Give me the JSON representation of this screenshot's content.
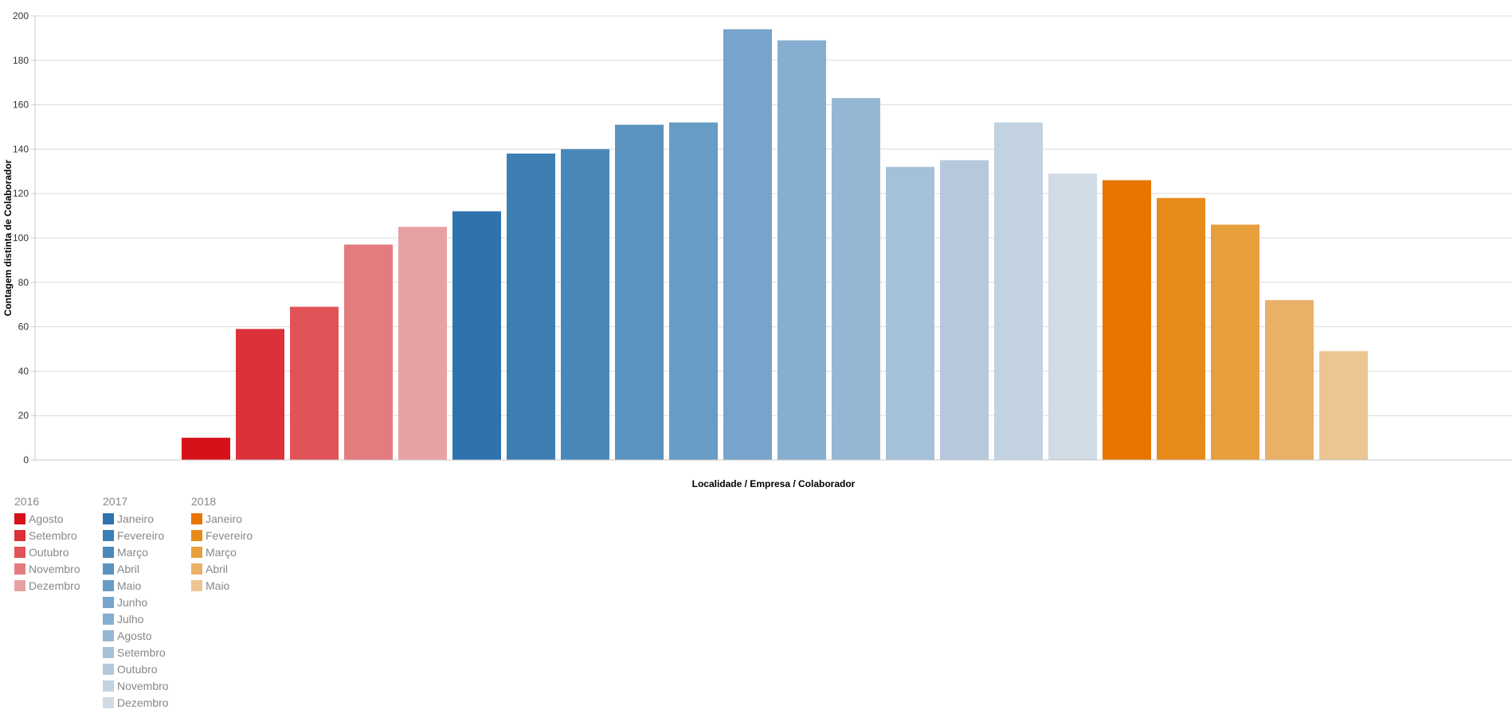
{
  "chart_data": {
    "type": "bar",
    "xlabel": "Localidade / Empresa / Colaborador",
    "ylabel": "Contagem distinta de Colaborador",
    "ylim": [
      0,
      200
    ],
    "yticks": [
      0,
      20,
      40,
      60,
      80,
      100,
      120,
      140,
      160,
      180,
      200
    ],
    "grid": true,
    "legend_position": "bottom-left",
    "bars": [
      {
        "year": "2016",
        "month": "Agosto",
        "value": 10,
        "color": "#d7111a"
      },
      {
        "year": "2016",
        "month": "Setembro",
        "value": 59,
        "color": "#db3139"
      },
      {
        "year": "2016",
        "month": "Outubro",
        "value": 69,
        "color": "#e05359"
      },
      {
        "year": "2016",
        "month": "Novembro",
        "value": 97,
        "color": "#e47b7e"
      },
      {
        "year": "2016",
        "month": "Dezembro",
        "value": 105,
        "color": "#e8a1a3"
      },
      {
        "year": "2017",
        "month": "Janeiro",
        "value": 112,
        "color": "#2e73ae"
      },
      {
        "year": "2017",
        "month": "Fevereiro",
        "value": 138,
        "color": "#3d7fb4"
      },
      {
        "year": "2017",
        "month": "Março",
        "value": 140,
        "color": "#4a88ba"
      },
      {
        "year": "2017",
        "month": "Abril",
        "value": 151,
        "color": "#5b93c0"
      },
      {
        "year": "2017",
        "month": "Maio",
        "value": 152,
        "color": "#679cc5"
      },
      {
        "year": "2017",
        "month": "Junho",
        "value": 194,
        "color": "#76a4ca"
      },
      {
        "year": "2017",
        "month": "Julho",
        "value": 189,
        "color": "#86aed0"
      },
      {
        "year": "2017",
        "month": "Agosto",
        "value": 163,
        "color": "#95b7d4"
      },
      {
        "year": "2017",
        "month": "Setembro",
        "value": 132,
        "color": "#a5c0d9"
      },
      {
        "year": "2017",
        "month": "Outubro",
        "value": 135,
        "color": "#b5c8dc"
      },
      {
        "year": "2017",
        "month": "Novembro",
        "value": 152,
        "color": "#c2d2e0"
      },
      {
        "year": "2017",
        "month": "Dezembro",
        "value": 129,
        "color": "#d0dbe5"
      },
      {
        "year": "2018",
        "month": "Janeiro",
        "value": 126,
        "color": "#e87500"
      },
      {
        "year": "2018",
        "month": "Fevereiro",
        "value": 118,
        "color": "#e68a19"
      },
      {
        "year": "2018",
        "month": "Março",
        "value": 106,
        "color": "#e79e3d"
      },
      {
        "year": "2018",
        "month": "Abril",
        "value": 72,
        "color": "#eab068"
      },
      {
        "year": "2018",
        "month": "Maio",
        "value": 49,
        "color": "#ecc692"
      }
    ]
  }
}
